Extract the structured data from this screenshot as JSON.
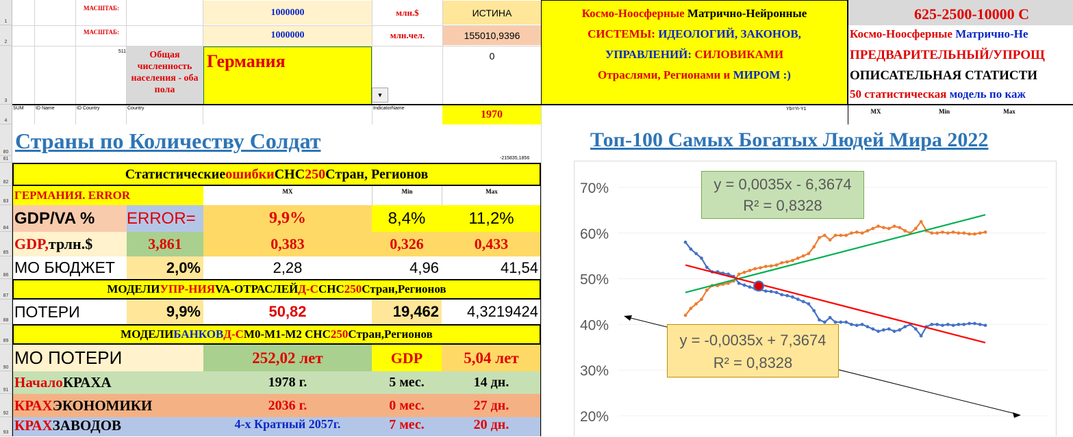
{
  "header": {
    "scale_label_1": "МАСШТАБ:",
    "scale_label_2": "МАСШТАБ:",
    "scale_value_1": "1000000",
    "scale_value_2": "1000000",
    "unit_1": "млн.$",
    "unit_2": "млн.чел.",
    "truth_label": "ИСТИНА",
    "truth_value": "155010,9396",
    "zero_value": "0",
    "num_511": "511",
    "population_label": "Общая численность населения - оба пола",
    "country": "Германия",
    "year": "1970",
    "col_sum": "SUM",
    "col_id_name": "ID Name",
    "col_id_country": "ID Country",
    "col_country": "Country",
    "col_indicator": "IndicatorName",
    "col_yb": "Yb=Yi-Y1",
    "col_mx": "MX",
    "col_min": "Min",
    "col_max": "Max",
    "systems_line1a": "Космо-Ноосферные",
    "systems_line1b": " Матрично-Нейронные",
    "systems_line2a": "СИСТЕМЫ: ",
    "systems_line2b": "ИДЕОЛОГИЙ, ЗАКОНОВ,",
    "systems_line3a": "УПРАВЛЕНИЙ: ",
    "systems_line3b": "СИЛОВИКАМИ",
    "systems_line4a": "Отраслями, Регионами и ",
    "systems_line4b": "МИРОМ :)",
    "right_title": "625-2500-10000 С",
    "right_line1a": "Космо-Ноосферные ",
    "right_line1b": "Матрично-Не",
    "right_line2": "ПРЕДВАРИТЕЛЬНЫЙ/УПРОЩ",
    "right_line3": "ОПИСАТЕЛЬНАЯ СТАТИСТИ",
    "right_line4a": "50 статистическая ",
    "right_line4b": "модель по каж"
  },
  "rows": {
    "row_numbers": [
      "1",
      "2",
      "3",
      "4",
      "80",
      "81",
      "82",
      "83",
      "84",
      "85",
      "86",
      "87",
      "88",
      "89",
      "90",
      "91",
      "92",
      "93"
    ],
    "small_value": "-215835,1856"
  },
  "section": {
    "left_title": "Страны по Количеству Солдат",
    "right_title": "Топ-100 Самых Богатых Людей Мира 2022"
  },
  "table": {
    "stat_header_a": "Статистические ",
    "stat_header_b": "ошибки",
    "stat_header_c": " СНС ",
    "stat_header_d": "250",
    "stat_header_e": " Стран, Регионов",
    "germany_error": "ГЕРМАНИЯ. ERROR",
    "h_mx": "MX",
    "h_min": "Min",
    "h_max": "Max",
    "r84": {
      "label": "GDP/VA %",
      "b": "ERROR=",
      "mx": "9,9%",
      "min": "8,4%",
      "max": "11,2%"
    },
    "r85": {
      "label_a": "GDP,",
      "label_b": " трлн.$",
      "b": "3,861",
      "mx": "0,383",
      "min": "0,326",
      "max": "0,433"
    },
    "r86": {
      "label": "МО БЮДЖЕТ",
      "b": "2,0%",
      "mx": "2,28",
      "min": "4,96",
      "max": "41,54"
    },
    "r87": {
      "a": "МОДЕЛИ ",
      "b": "УПР-НИЯ",
      "c": " VA-ОТРАСЛЕЙ ",
      "d": "Д-С",
      "e": " СНС ",
      "f": "250",
      "g": " Стран,Регионов"
    },
    "r88": {
      "label": "ПОТЕРИ",
      "b": "9,9%",
      "mx": "50,82",
      "min": "19,462",
      "max": "4,3219424"
    },
    "r89": {
      "a": "МОДЕЛИ ",
      "b": "БАНКОВ",
      "c": " Д-С",
      "d": " M0-M1-M2 СНС ",
      "e": "250",
      "f": " Стран,Регионов"
    },
    "r90": {
      "label": "МО ПОТЕРИ",
      "mx": "252,02 лет",
      "min": "GDP",
      "max": "5,04 лет"
    },
    "r91": {
      "label_a": "Начало ",
      "label_b": "КРАХА",
      "mx": "1978 г.",
      "min": "5 мес.",
      "max": "14 дн."
    },
    "r92": {
      "label_a": "КРАХ",
      "label_b": " ЭКОНОМИКИ",
      "mx": "2036 г.",
      "min": "0 мес.",
      "max": "27 дн."
    },
    "r93": {
      "label_a": "КРАХ",
      "label_b": " ЗАВОДОВ",
      "mx": "4-х Кратный 2057г.",
      "min": "7 мес.",
      "max": "20 дн."
    }
  },
  "chart_data": {
    "type": "line",
    "yticks": [
      "70%",
      "60%",
      "50%",
      "40%",
      "30%",
      "20%"
    ],
    "ylim": [
      0.2,
      0.7
    ],
    "eq_top": "y = 0,0035x - 6,3674",
    "r2_top": "R² = 0,8328",
    "eq_bottom": "y = -0,0035x + 7,3674",
    "r2_bottom": "R² = 0,8328",
    "series": [
      {
        "color": "#4472c4",
        "values": [
          0.58,
          0.565,
          0.555,
          0.545,
          0.525,
          0.515,
          0.515,
          0.512,
          0.51,
          0.505,
          0.49,
          0.486,
          0.482,
          0.478,
          0.476,
          0.473,
          0.472,
          0.47,
          0.465,
          0.463,
          0.46,
          0.455,
          0.45,
          0.445,
          0.43,
          0.41,
          0.405,
          0.415,
          0.405,
          0.405,
          0.405,
          0.4,
          0.398,
          0.4,
          0.395,
          0.39,
          0.385,
          0.388,
          0.39,
          0.385,
          0.388,
          0.395,
          0.4,
          0.39,
          0.375,
          0.395,
          0.4,
          0.4,
          0.398,
          0.4,
          0.398,
          0.4,
          0.4,
          0.402,
          0.402,
          0.4,
          0.398
        ]
      },
      {
        "color": "#ed7d31",
        "values": [
          0.42,
          0.435,
          0.445,
          0.455,
          0.475,
          0.485,
          0.485,
          0.488,
          0.49,
          0.495,
          0.51,
          0.514,
          0.518,
          0.522,
          0.524,
          0.527,
          0.528,
          0.53,
          0.535,
          0.537,
          0.54,
          0.545,
          0.55,
          0.555,
          0.57,
          0.59,
          0.595,
          0.585,
          0.595,
          0.595,
          0.595,
          0.6,
          0.602,
          0.6,
          0.605,
          0.61,
          0.615,
          0.612,
          0.61,
          0.615,
          0.612,
          0.605,
          0.6,
          0.61,
          0.625,
          0.605,
          0.6,
          0.6,
          0.602,
          0.6,
          0.602,
          0.6,
          0.6,
          0.598,
          0.598,
          0.6,
          0.602
        ]
      }
    ]
  }
}
